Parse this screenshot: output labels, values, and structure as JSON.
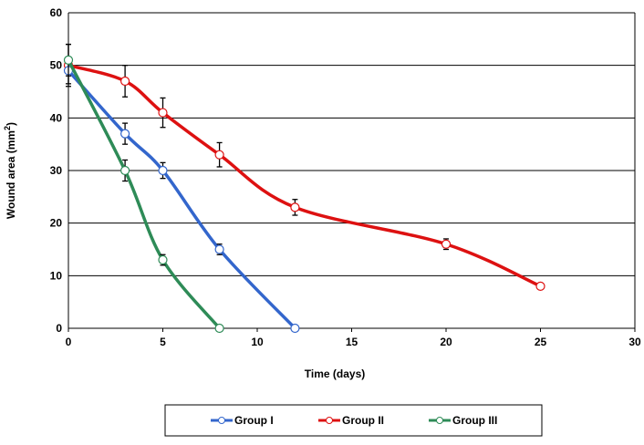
{
  "chart_data": {
    "type": "line",
    "xlabel": "Time (days)",
    "ylabel": "Wound area (mm",
    "ylabel_sup": "2",
    "ylabel_end": ")",
    "xlim": [
      0,
      30
    ],
    "ylim": [
      0,
      60
    ],
    "xticks": [
      0,
      5,
      10,
      15,
      20,
      25,
      30
    ],
    "yticks": [
      0,
      10,
      20,
      30,
      40,
      50,
      60
    ],
    "grid": "horizontal",
    "legend_position": "bottom",
    "series": [
      {
        "name": "Group I",
        "color": "#3366cc",
        "x": [
          0,
          3,
          5,
          8,
          12
        ],
        "y": [
          49,
          37,
          30,
          15,
          0
        ],
        "err": [
          2.5,
          2,
          1.5,
          1,
          0
        ]
      },
      {
        "name": "Group II",
        "color": "#dd1111",
        "x": [
          0,
          3,
          5,
          8,
          12,
          20,
          25
        ],
        "y": [
          50,
          47,
          41,
          33,
          23,
          16,
          8
        ],
        "err": [
          4,
          3,
          2.8,
          2.3,
          1.5,
          1,
          0
        ]
      },
      {
        "name": "Group III",
        "color": "#2e8b57",
        "x": [
          0,
          3,
          5,
          8
        ],
        "y": [
          51,
          30,
          13,
          0
        ],
        "err": [
          3,
          2,
          1,
          0
        ]
      }
    ]
  }
}
